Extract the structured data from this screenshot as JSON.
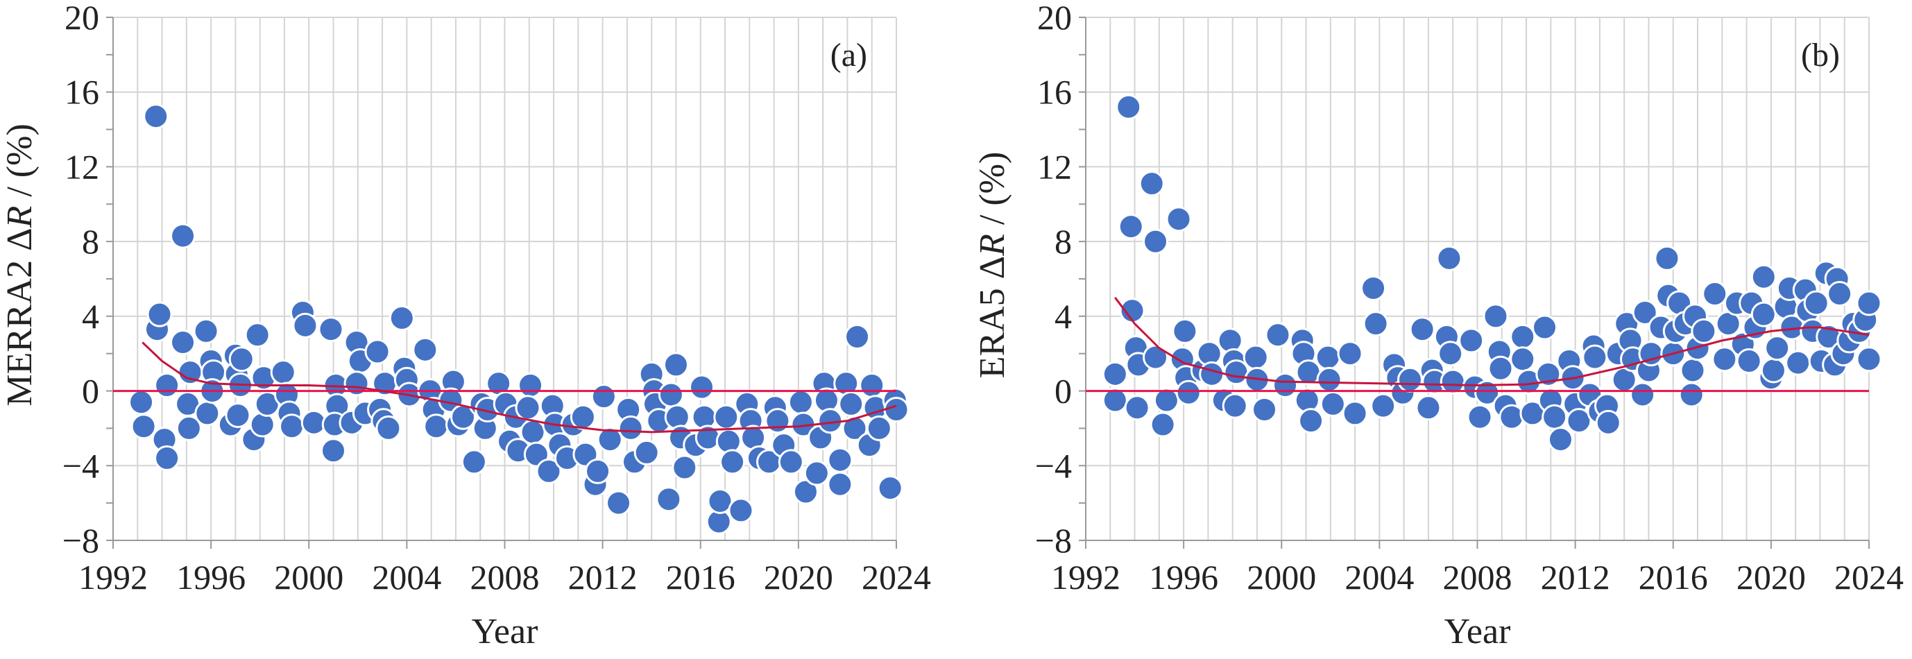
{
  "colors": {
    "marker_fill": "#4472c4",
    "marker_edge": "#ffffff",
    "trend": "#c8143c",
    "zero_line": "#e8134f",
    "grid": "#d4d4d4"
  },
  "chart_data": [
    {
      "type": "scatter",
      "panel_label": "(a)",
      "xlabel": "Year",
      "ylabel": {
        "prefix": "MERRA2 Δ",
        "italic": "R",
        "suffix": " / (%)"
      },
      "xlim": [
        1992,
        2024
      ],
      "ylim": [
        -8,
        20
      ],
      "xticks": [
        1992,
        1996,
        2000,
        2004,
        2008,
        2012,
        2016,
        2020,
        2024
      ],
      "yticks": [
        -8,
        -4,
        0,
        4,
        8,
        12,
        16,
        20
      ],
      "xtick_labels": [
        "1992",
        "1996",
        "2000",
        "2004",
        "2008",
        "2012",
        "2016",
        "2020",
        "2024"
      ],
      "ytick_labels": [
        "−8",
        "−4",
        "0",
        "4",
        "8",
        "12",
        "16",
        "20"
      ],
      "grid": true,
      "reference_line_y": 0,
      "points": [
        [
          1993.15,
          -0.6
        ],
        [
          1993.25,
          -1.9
        ],
        [
          1993.75,
          14.7
        ],
        [
          1993.8,
          3.3
        ],
        [
          1993.9,
          4.1
        ],
        [
          1994.2,
          0.3
        ],
        [
          1994.1,
          -2.6
        ],
        [
          1994.2,
          -3.6
        ],
        [
          1994.85,
          2.6
        ],
        [
          1994.85,
          8.3
        ],
        [
          1995.15,
          1.0
        ],
        [
          1995.05,
          -0.7
        ],
        [
          1995.1,
          -2.0
        ],
        [
          1995.8,
          3.2
        ],
        [
          1995.85,
          -1.2
        ],
        [
          1996.0,
          1.6
        ],
        [
          1996.1,
          1.0
        ],
        [
          1996.05,
          0.0
        ],
        [
          1996.8,
          -1.8
        ],
        [
          1997.0,
          1.9
        ],
        [
          1997.05,
          0.9
        ],
        [
          1997.2,
          0.3
        ],
        [
          1997.1,
          -1.3
        ],
        [
          1997.25,
          1.7
        ],
        [
          1997.75,
          -2.6
        ],
        [
          1997.9,
          3.0
        ],
        [
          1998.15,
          0.7
        ],
        [
          1998.1,
          -1.8
        ],
        [
          1998.3,
          -0.7
        ],
        [
          1998.95,
          1.0
        ],
        [
          1999.1,
          -0.2
        ],
        [
          1999.2,
          -1.2
        ],
        [
          1999.3,
          -1.9
        ],
        [
          1999.75,
          4.2
        ],
        [
          1999.85,
          3.5
        ],
        [
          2000.2,
          -1.7
        ],
        [
          2000.9,
          3.3
        ],
        [
          2001.0,
          -3.2
        ],
        [
          2001.1,
          0.3
        ],
        [
          2001.15,
          -0.8
        ],
        [
          2001.05,
          -1.8
        ],
        [
          2001.75,
          -1.7
        ],
        [
          2001.95,
          2.6
        ],
        [
          2002.1,
          1.6
        ],
        [
          2001.95,
          0.4
        ],
        [
          2002.3,
          -1.2
        ],
        [
          2002.8,
          2.1
        ],
        [
          2002.9,
          -1.0
        ],
        [
          2003.05,
          -1.6
        ],
        [
          2003.25,
          -2.0
        ],
        [
          2003.1,
          0.4
        ],
        [
          2003.8,
          3.9
        ],
        [
          2003.9,
          1.2
        ],
        [
          2004.0,
          0.6
        ],
        [
          2004.1,
          -0.2
        ],
        [
          2004.75,
          2.2
        ],
        [
          2004.95,
          0.0
        ],
        [
          2005.1,
          -1.0
        ],
        [
          2005.2,
          -1.9
        ],
        [
          2005.9,
          0.5
        ],
        [
          2005.8,
          -0.5
        ],
        [
          2006.1,
          -1.8
        ],
        [
          2006.3,
          -1.4
        ],
        [
          2006.75,
          -3.8
        ],
        [
          2007.05,
          -0.7
        ],
        [
          2007.2,
          -2.0
        ],
        [
          2007.3,
          -1.0
        ],
        [
          2007.75,
          0.4
        ],
        [
          2008.05,
          -0.7
        ],
        [
          2008.2,
          -2.7
        ],
        [
          2008.55,
          -3.2
        ],
        [
          2008.45,
          -1.4
        ],
        [
          2009.05,
          0.3
        ],
        [
          2008.95,
          -0.9
        ],
        [
          2009.15,
          -2.2
        ],
        [
          2009.3,
          -3.4
        ],
        [
          2009.8,
          -4.3
        ],
        [
          2009.95,
          -0.8
        ],
        [
          2010.05,
          -1.8
        ],
        [
          2010.25,
          -2.9
        ],
        [
          2010.55,
          -3.6
        ],
        [
          2010.8,
          -1.8
        ],
        [
          2011.2,
          -1.4
        ],
        [
          2011.3,
          -3.4
        ],
        [
          2011.7,
          -5.0
        ],
        [
          2011.8,
          -4.3
        ],
        [
          2012.05,
          -0.3
        ],
        [
          2012.3,
          -2.6
        ],
        [
          2012.65,
          -6.0
        ],
        [
          2013.05,
          -1.0
        ],
        [
          2013.15,
          -2.0
        ],
        [
          2013.3,
          -3.8
        ],
        [
          2013.8,
          -3.3
        ],
        [
          2014.0,
          0.9
        ],
        [
          2014.1,
          0.0
        ],
        [
          2014.15,
          -0.7
        ],
        [
          2014.3,
          -1.6
        ],
        [
          2014.7,
          -5.8
        ],
        [
          2014.8,
          -0.2
        ],
        [
          2015.0,
          1.4
        ],
        [
          2015.05,
          -1.4
        ],
        [
          2015.2,
          -2.5
        ],
        [
          2015.35,
          -4.1
        ],
        [
          2015.8,
          -2.9
        ],
        [
          2016.05,
          0.2
        ],
        [
          2016.15,
          -1.4
        ],
        [
          2016.3,
          -2.5
        ],
        [
          2016.75,
          -7.0
        ],
        [
          2016.8,
          -5.9
        ],
        [
          2017.05,
          -1.4
        ],
        [
          2017.15,
          -2.7
        ],
        [
          2017.3,
          -3.8
        ],
        [
          2017.65,
          -6.4
        ],
        [
          2017.9,
          -0.7
        ],
        [
          2018.05,
          -1.6
        ],
        [
          2018.15,
          -2.5
        ],
        [
          2018.4,
          -3.6
        ],
        [
          2018.8,
          -3.8
        ],
        [
          2019.05,
          -0.9
        ],
        [
          2019.15,
          -1.6
        ],
        [
          2019.4,
          -2.9
        ],
        [
          2019.7,
          -3.8
        ],
        [
          2020.1,
          -0.6
        ],
        [
          2020.2,
          -1.8
        ],
        [
          2020.3,
          -5.4
        ],
        [
          2020.75,
          -4.4
        ],
        [
          2020.9,
          -2.5
        ],
        [
          2021.05,
          0.4
        ],
        [
          2021.15,
          -0.5
        ],
        [
          2021.3,
          -1.6
        ],
        [
          2021.7,
          -3.7
        ],
        [
          2021.7,
          -5.0
        ],
        [
          2021.95,
          0.4
        ],
        [
          2022.15,
          -0.7
        ],
        [
          2022.3,
          -2.0
        ],
        [
          2022.4,
          2.9
        ],
        [
          2022.9,
          -2.9
        ],
        [
          2023.0,
          0.3
        ],
        [
          2023.15,
          -0.9
        ],
        [
          2023.3,
          -2.0
        ],
        [
          2023.75,
          -5.2
        ],
        [
          2023.95,
          -0.5
        ],
        [
          2024.0,
          -1.0
        ]
      ],
      "trend": [
        [
          1993.2,
          2.6
        ],
        [
          1994,
          1.6
        ],
        [
          1995,
          0.7
        ],
        [
          1996,
          0.4
        ],
        [
          1998,
          0.3
        ],
        [
          2000,
          0.3
        ],
        [
          2002,
          0.2
        ],
        [
          2004,
          -0.2
        ],
        [
          2006,
          -0.7
        ],
        [
          2008,
          -1.3
        ],
        [
          2010,
          -1.8
        ],
        [
          2012,
          -2.1
        ],
        [
          2014,
          -2.2
        ],
        [
          2016,
          -2.1
        ],
        [
          2018,
          -2.0
        ],
        [
          2020,
          -1.9
        ],
        [
          2022,
          -1.6
        ],
        [
          2023,
          -1.2
        ],
        [
          2024,
          -0.8
        ]
      ]
    },
    {
      "type": "scatter",
      "panel_label": "(b)",
      "xlabel": "Year",
      "ylabel": {
        "prefix": "ERA5 Δ",
        "italic": "R",
        "suffix": " / (%)"
      },
      "xlim": [
        1992,
        2024
      ],
      "ylim": [
        -8,
        20
      ],
      "xticks": [
        1992,
        1996,
        2000,
        2004,
        2008,
        2012,
        2016,
        2020,
        2024
      ],
      "yticks": [
        -8,
        -4,
        0,
        4,
        8,
        12,
        16,
        20
      ],
      "xtick_labels": [
        "1992",
        "1996",
        "2000",
        "2004",
        "2008",
        "2012",
        "2016",
        "2020",
        "2024"
      ],
      "ytick_labels": [
        "−8",
        "−4",
        "0",
        "4",
        "8",
        "12",
        "16",
        "20"
      ],
      "grid": true,
      "reference_line_y": 0,
      "points": [
        [
          1993.2,
          0.9
        ],
        [
          1993.2,
          -0.5
        ],
        [
          1993.75,
          15.2
        ],
        [
          1993.85,
          8.8
        ],
        [
          1993.9,
          4.3
        ],
        [
          1994.05,
          2.3
        ],
        [
          1994.15,
          1.4
        ],
        [
          1994.1,
          -0.9
        ],
        [
          1994.7,
          11.1
        ],
        [
          1994.85,
          8.0
        ],
        [
          1994.85,
          1.8
        ],
        [
          1995.15,
          -1.8
        ],
        [
          1995.3,
          -0.5
        ],
        [
          1995.8,
          9.2
        ],
        [
          1996.05,
          3.2
        ],
        [
          1995.95,
          1.7
        ],
        [
          1996.1,
          0.7
        ],
        [
          1996.2,
          -0.1
        ],
        [
          1996.8,
          1.1
        ],
        [
          1997.05,
          2.0
        ],
        [
          1997.15,
          0.9
        ],
        [
          1997.9,
          2.7
        ],
        [
          1998.05,
          1.6
        ],
        [
          1998.15,
          1.0
        ],
        [
          1997.65,
          -0.5
        ],
        [
          1998.1,
          -0.8
        ],
        [
          1998.95,
          1.8
        ],
        [
          1999.0,
          0.6
        ],
        [
          1999.3,
          -1.0
        ],
        [
          1999.85,
          3.0
        ],
        [
          2000.15,
          0.3
        ],
        [
          2000.85,
          2.7
        ],
        [
          2000.9,
          2.0
        ],
        [
          2001.1,
          1.0
        ],
        [
          2001.05,
          -0.5
        ],
        [
          2001.2,
          -1.6
        ],
        [
          2001.9,
          1.8
        ],
        [
          2001.95,
          0.6
        ],
        [
          2002.1,
          -0.7
        ],
        [
          2002.8,
          2.0
        ],
        [
          2003.0,
          -1.2
        ],
        [
          2003.75,
          5.5
        ],
        [
          2003.85,
          3.6
        ],
        [
          2004.15,
          -0.8
        ],
        [
          2004.6,
          1.4
        ],
        [
          2004.75,
          0.7
        ],
        [
          2004.95,
          -0.1
        ],
        [
          2005.25,
          0.6
        ],
        [
          2005.75,
          3.3
        ],
        [
          2006.0,
          -0.9
        ],
        [
          2006.15,
          1.1
        ],
        [
          2006.25,
          0.5
        ],
        [
          2006.85,
          7.1
        ],
        [
          2006.75,
          2.9
        ],
        [
          2006.9,
          2.0
        ],
        [
          2007.0,
          0.5
        ],
        [
          2007.75,
          2.7
        ],
        [
          2007.9,
          0.2
        ],
        [
          2008.1,
          -1.4
        ],
        [
          2008.4,
          -0.1
        ],
        [
          2008.75,
          4.0
        ],
        [
          2008.9,
          2.1
        ],
        [
          2008.95,
          1.2
        ],
        [
          2009.15,
          -0.8
        ],
        [
          2009.4,
          -1.4
        ],
        [
          2009.85,
          2.9
        ],
        [
          2009.85,
          1.7
        ],
        [
          2010.1,
          0.5
        ],
        [
          2010.25,
          -1.2
        ],
        [
          2010.75,
          3.4
        ],
        [
          2010.9,
          0.9
        ],
        [
          2011.0,
          -0.5
        ],
        [
          2011.15,
          -1.4
        ],
        [
          2011.4,
          -2.6
        ],
        [
          2011.75,
          1.6
        ],
        [
          2011.9,
          0.7
        ],
        [
          2012.0,
          -0.7
        ],
        [
          2012.15,
          -1.6
        ],
        [
          2012.6,
          -0.2
        ],
        [
          2012.75,
          2.4
        ],
        [
          2012.8,
          1.8
        ],
        [
          2013.0,
          -1.1
        ],
        [
          2013.3,
          -0.8
        ],
        [
          2013.35,
          -1.7
        ],
        [
          2013.75,
          2.0
        ],
        [
          2014.0,
          0.6
        ],
        [
          2014.1,
          3.6
        ],
        [
          2014.25,
          2.7
        ],
        [
          2014.35,
          1.7
        ],
        [
          2014.75,
          -0.2
        ],
        [
          2014.85,
          4.2
        ],
        [
          2015.0,
          1.1
        ],
        [
          2015.1,
          2.0
        ],
        [
          2015.5,
          3.4
        ],
        [
          2015.75,
          7.1
        ],
        [
          2015.8,
          5.1
        ],
        [
          2016.0,
          2.0
        ],
        [
          2016.1,
          3.2
        ],
        [
          2016.25,
          4.7
        ],
        [
          2016.5,
          3.6
        ],
        [
          2016.75,
          -0.2
        ],
        [
          2016.8,
          1.1
        ],
        [
          2016.9,
          4.0
        ],
        [
          2017.0,
          2.3
        ],
        [
          2017.25,
          3.2
        ],
        [
          2017.7,
          5.2
        ],
        [
          2018.1,
          1.7
        ],
        [
          2018.25,
          3.6
        ],
        [
          2018.6,
          4.7
        ],
        [
          2018.85,
          2.5
        ],
        [
          2019.1,
          1.6
        ],
        [
          2019.2,
          4.7
        ],
        [
          2019.35,
          3.4
        ],
        [
          2019.7,
          6.1
        ],
        [
          2019.7,
          4.1
        ],
        [
          2020.0,
          0.7
        ],
        [
          2020.1,
          1.1
        ],
        [
          2020.25,
          2.3
        ],
        [
          2020.6,
          4.5
        ],
        [
          2020.75,
          5.5
        ],
        [
          2020.85,
          3.4
        ],
        [
          2021.1,
          1.5
        ],
        [
          2021.4,
          5.4
        ],
        [
          2021.5,
          4.3
        ],
        [
          2021.7,
          3.2
        ],
        [
          2021.85,
          4.7
        ],
        [
          2022.05,
          1.6
        ],
        [
          2022.25,
          6.3
        ],
        [
          2022.35,
          2.9
        ],
        [
          2022.6,
          1.4
        ],
        [
          2022.7,
          6.0
        ],
        [
          2022.8,
          5.2
        ],
        [
          2022.95,
          2.0
        ],
        [
          2023.2,
          2.7
        ],
        [
          2023.35,
          3.6
        ],
        [
          2023.6,
          3.2
        ],
        [
          2023.85,
          3.8
        ],
        [
          2024.0,
          4.7
        ],
        [
          2024.0,
          1.7
        ]
      ],
      "trend": [
        [
          1993.2,
          5.0
        ],
        [
          1994,
          3.6
        ],
        [
          1995,
          2.3
        ],
        [
          1996,
          1.5
        ],
        [
          1998,
          0.8
        ],
        [
          2000,
          0.5
        ],
        [
          2002,
          0.45
        ],
        [
          2004,
          0.4
        ],
        [
          2006,
          0.35
        ],
        [
          2008,
          0.3
        ],
        [
          2010,
          0.35
        ],
        [
          2012,
          0.7
        ],
        [
          2014,
          1.3
        ],
        [
          2016,
          2.0
        ],
        [
          2018,
          2.7
        ],
        [
          2020,
          3.2
        ],
        [
          2021.5,
          3.4
        ],
        [
          2022,
          3.4
        ],
        [
          2023,
          3.2
        ],
        [
          2024,
          3.0
        ]
      ]
    }
  ]
}
